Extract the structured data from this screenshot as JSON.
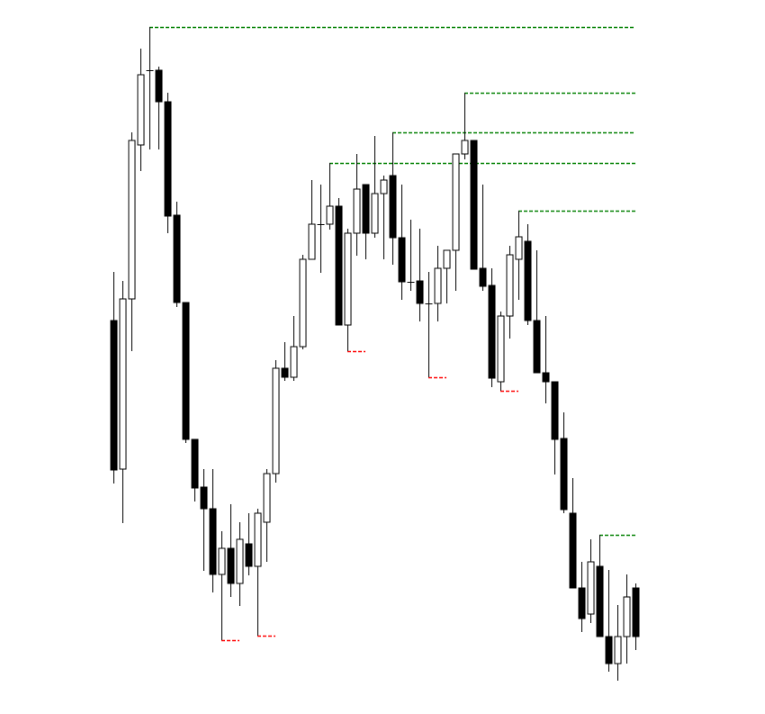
{
  "chart_data": {
    "type": "candlestick",
    "title": "",
    "xlabel": "",
    "ylabel": "",
    "grid": false,
    "ylim": [
      0,
      800
    ],
    "colors": {
      "bullish_body": "#ffffff",
      "bearish_body": "#000000",
      "outline": "#000000",
      "resistance": "#008000",
      "support": "#ff0000"
    },
    "ohlc_fields": [
      "open",
      "high",
      "low",
      "close"
    ],
    "candles": [
      [
        444,
        498,
        263,
        278
      ],
      [
        279,
        488,
        219,
        468
      ],
      [
        468,
        653,
        410,
        644
      ],
      [
        639,
        746,
        610,
        717
      ],
      [
        722,
        770,
        634,
        722
      ],
      [
        722,
        726,
        634,
        687
      ],
      [
        687,
        697,
        541,
        560
      ],
      [
        561,
        576,
        459,
        464
      ],
      [
        464,
        464,
        308,
        312
      ],
      [
        312,
        312,
        243,
        258
      ],
      [
        259,
        279,
        166,
        235
      ],
      [
        235,
        279,
        142,
        162
      ],
      [
        162,
        210,
        89,
        191
      ],
      [
        191,
        240,
        137,
        152
      ],
      [
        152,
        220,
        127,
        201
      ],
      [
        196,
        230,
        161,
        171
      ],
      [
        171,
        235,
        94,
        230
      ],
      [
        220,
        279,
        176,
        274
      ],
      [
        274,
        400,
        264,
        391
      ],
      [
        391,
        420,
        377,
        381
      ],
      [
        381,
        449,
        377,
        415
      ],
      [
        415,
        517,
        412,
        512
      ],
      [
        512,
        600,
        512,
        551
      ],
      [
        551,
        595,
        497,
        551
      ],
      [
        551,
        619,
        545,
        571
      ],
      [
        571,
        580,
        439,
        439
      ],
      [
        439,
        546,
        410,
        541
      ],
      [
        541,
        629,
        516,
        590
      ],
      [
        595,
        595,
        512,
        541
      ],
      [
        541,
        649,
        536,
        585
      ],
      [
        585,
        605,
        512,
        600
      ],
      [
        605,
        653,
        506,
        536
      ],
      [
        536,
        595,
        467,
        487
      ],
      [
        487,
        556,
        477,
        487
      ],
      [
        488,
        546,
        443,
        463
      ],
      [
        463,
        498,
        381,
        463
      ],
      [
        463,
        527,
        443,
        502
      ],
      [
        502,
        522,
        463,
        522
      ],
      [
        522,
        629,
        477,
        629
      ],
      [
        629,
        697,
        623,
        644
      ],
      [
        644,
        644,
        501,
        501
      ],
      [
        502,
        595,
        477,
        482
      ],
      [
        483,
        502,
        370,
        380
      ],
      [
        376,
        454,
        366,
        449
      ],
      [
        449,
        527,
        424,
        517
      ],
      [
        512,
        566,
        467,
        537
      ],
      [
        532,
        551,
        439,
        444
      ],
      [
        444,
        522,
        386,
        386
      ],
      [
        386,
        449,
        352,
        376
      ],
      [
        376,
        376,
        273,
        312
      ],
      [
        313,
        342,
        230,
        234
      ],
      [
        230,
        269,
        147,
        147
      ],
      [
        147,
        176,
        98,
        113
      ],
      [
        118,
        201,
        108,
        176
      ],
      [
        171,
        206,
        93,
        93
      ],
      [
        93,
        167,
        54,
        63
      ],
      [
        63,
        128,
        44,
        93
      ],
      [
        93,
        162,
        63,
        137
      ],
      [
        147,
        152,
        78,
        93
      ]
    ],
    "resistance_levels": [
      {
        "from_candle": 5,
        "price": 770
      },
      {
        "from_candle": 40,
        "price": 697
      },
      {
        "from_candle": 32,
        "price": 653
      },
      {
        "from_candle": 25,
        "price": 619
      },
      {
        "from_candle": 46,
        "price": 566
      },
      {
        "from_candle": 55,
        "price": 206
      }
    ],
    "support_levels": [
      {
        "from_candle": 13,
        "price": 89
      },
      {
        "from_candle": 17,
        "price": 94
      },
      {
        "from_candle": 27,
        "price": 410
      },
      {
        "from_candle": 36,
        "price": 381
      },
      {
        "from_candle": 44,
        "price": 366
      }
    ]
  }
}
